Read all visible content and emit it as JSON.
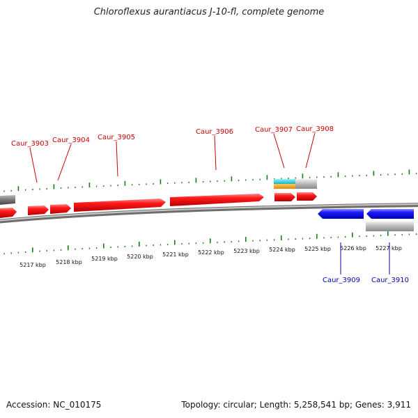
{
  "title": "Chloroflexus aurantiacus J-10-fl, complete genome",
  "accession": "Accession: NC_010175",
  "summary": "Topology: circular; Length: 5,258,541 bp; Genes: 3,911",
  "scale_labels": [
    "5217 kbp",
    "5218 kbp",
    "5219 kbp",
    "5220 kbp",
    "5221 kbp",
    "5222 kbp",
    "5223 kbp",
    "5224 kbp",
    "5225 kbp",
    "5226 kbp",
    "5227 kbp"
  ],
  "forward_genes": [
    "Caur_3903",
    "Caur_3904",
    "Caur_3905",
    "Caur_3906",
    "Caur_3907",
    "Caur_3908"
  ],
  "reverse_genes": [
    "Caur_3909",
    "Caur_3910"
  ],
  "colors": {
    "forward": "#ff1a1a",
    "reverse": "#1a1aff",
    "forward_label": "#cc0000",
    "reverse_label": "#0000aa",
    "backbone": "#8a8a8a",
    "ticks": "#1a7a1a",
    "feature_cyan": "#19c7cf",
    "feature_orange": "#f29a0a",
    "feature_gray": "#bdbdbd"
  }
}
